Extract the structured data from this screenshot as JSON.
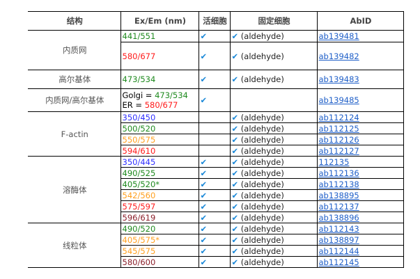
{
  "headers": [
    "结构",
    "Ex/Em (nm)",
    "活细胞",
    "固定细胞",
    "AbID"
  ],
  "check_icon": "✔",
  "colors": {
    "green": "#1f8a1f",
    "red": "#ff1a1a",
    "blue": "#3030ff",
    "orange": "#ffa020",
    "darkred": "#8b1f2a",
    "check": "#1a88d8",
    "link": "#1f5fc8"
  },
  "groups": [
    {
      "structure": "内质网",
      "rows": [
        {
          "exem": "441/551",
          "color": "green",
          "live": true,
          "fixed": "(aldehyde)",
          "abid": "ab139481"
        },
        {
          "exem": "580/677",
          "color": "red",
          "live": true,
          "fixed": "(aldehyde)",
          "abid": "ab139482"
        }
      ]
    },
    {
      "structure": "高尔基体",
      "rows": [
        {
          "exem": "473/534",
          "color": "green",
          "live": true,
          "fixed": "(aldehyde)",
          "abid": "ab139483"
        }
      ]
    },
    {
      "structure": "内质网/高尔基体",
      "rows": [
        {
          "golgi_label": "Golgi = ",
          "golgi": "473/534",
          "er_label": " ER = ",
          "er": "580/677",
          "live": true,
          "fixed": "",
          "abid": "ab139485"
        }
      ]
    },
    {
      "structure": "F-actin",
      "rows": [
        {
          "exem": "350/450",
          "color": "blue",
          "live": false,
          "fixed": "(aldehyde)",
          "abid": "ab112124"
        },
        {
          "exem": "500/520",
          "color": "green",
          "live": false,
          "fixed": "(aldehyde)",
          "abid": "ab112125"
        },
        {
          "exem": "550/575",
          "color": "orange",
          "live": false,
          "fixed": "(aldehyde)",
          "abid": "ab112126"
        },
        {
          "exem": "594/610",
          "color": "red",
          "live": false,
          "fixed": "(aldehyde)",
          "abid": "ab112127"
        }
      ]
    },
    {
      "structure": "溶酶体",
      "rows": [
        {
          "exem": "350/445",
          "color": "blue",
          "live": true,
          "fixed": "(aldehyde)",
          "abid": "112135"
        },
        {
          "exem": "490/525",
          "color": "green",
          "live": true,
          "fixed": "(aldehyde)",
          "abid": "ab112136"
        },
        {
          "exem": "405/520*",
          "color": "green",
          "live": true,
          "fixed": "(aldehyde)",
          "abid": "ab112138"
        },
        {
          "exem": "542/560",
          "color": "orange",
          "live": true,
          "fixed": "(aldehyde)",
          "abid": "ab138895"
        },
        {
          "exem": "575/597",
          "color": "red",
          "live": true,
          "fixed": "(aldehyde)",
          "abid": "ab112137"
        },
        {
          "exem": "596/619",
          "color": "darkred",
          "live": true,
          "fixed": "(aldehyde)",
          "abid": "ab138896"
        }
      ]
    },
    {
      "structure": "线粒体",
      "rows": [
        {
          "exem": "490/520",
          "color": "green",
          "live": true,
          "fixed": "(aldehyde)",
          "abid": "ab112143"
        },
        {
          "exem": "405/575*",
          "color": "orange",
          "live": true,
          "fixed": "(aldehyde)",
          "abid": "ab138897"
        },
        {
          "exem": "545/575",
          "color": "orange",
          "live": true,
          "fixed": "(aldehyde)",
          "abid": "ab112144"
        },
        {
          "exem": "580/600",
          "color": "darkred",
          "live": true,
          "fixed": "(aldehyde)",
          "abid": "ab112145"
        }
      ]
    }
  ]
}
